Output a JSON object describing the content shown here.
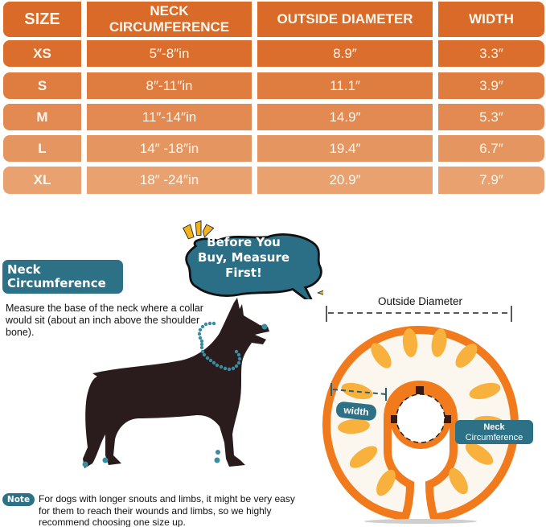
{
  "size_table": {
    "headers": [
      "SIZE",
      "NECK\nCIRCUMFERENCE",
      "OUTSIDE DIAMETER",
      "WIDTH"
    ],
    "rows": [
      {
        "size": "XS",
        "neck": "5″-8″in",
        "outside_diameter": "8.9″",
        "width": "3.3″"
      },
      {
        "size": "S",
        "neck": "8″-11″in",
        "outside_diameter": "11.1″",
        "width": "3.9″"
      },
      {
        "size": "M",
        "neck": "11″-14″in",
        "outside_diameter": "14.9″",
        "width": "5.3″"
      },
      {
        "size": "L",
        "neck": "14″ -18″in",
        "outside_diameter": "19.4″",
        "width": "6.7″"
      },
      {
        "size": "XL",
        "neck": "18″ -24″in",
        "outside_diameter": "20.9″",
        "width": "7.9″"
      }
    ],
    "colors": {
      "header": "#d96a28",
      "rows": [
        "#db6e2c",
        "#df7d41",
        "#e28a52",
        "#e59660",
        "#e8a16f"
      ]
    }
  },
  "callout": {
    "text_line1": "Before You",
    "text_line2": "Buy, Measure",
    "text_line3": "First!",
    "bubble_color": "#2b6f86",
    "accent_color": "#f2b21c"
  },
  "neck_section": {
    "badge_line1": "Neck",
    "badge_line2": "Circumference",
    "instruction": "Measure the base of the neck where a collar would sit (about an inch above the shoulder bone)."
  },
  "note": {
    "badge": "Note",
    "text": "For dogs with longer snouts and limbs, it might be very easy for them to reach their wounds and limbs, so we highly recommend choosing one size up."
  },
  "collar_diagram": {
    "outside_diameter_label": "Outside Diameter",
    "width_label": "width",
    "neck_label_line1": "Neck",
    "neck_label_line2": "Circumference",
    "ring_color": "#f07a1c",
    "slice_color": "#f7b13c"
  },
  "colors": {
    "teal": "#2d7186",
    "dog": "#2a1c1c"
  }
}
